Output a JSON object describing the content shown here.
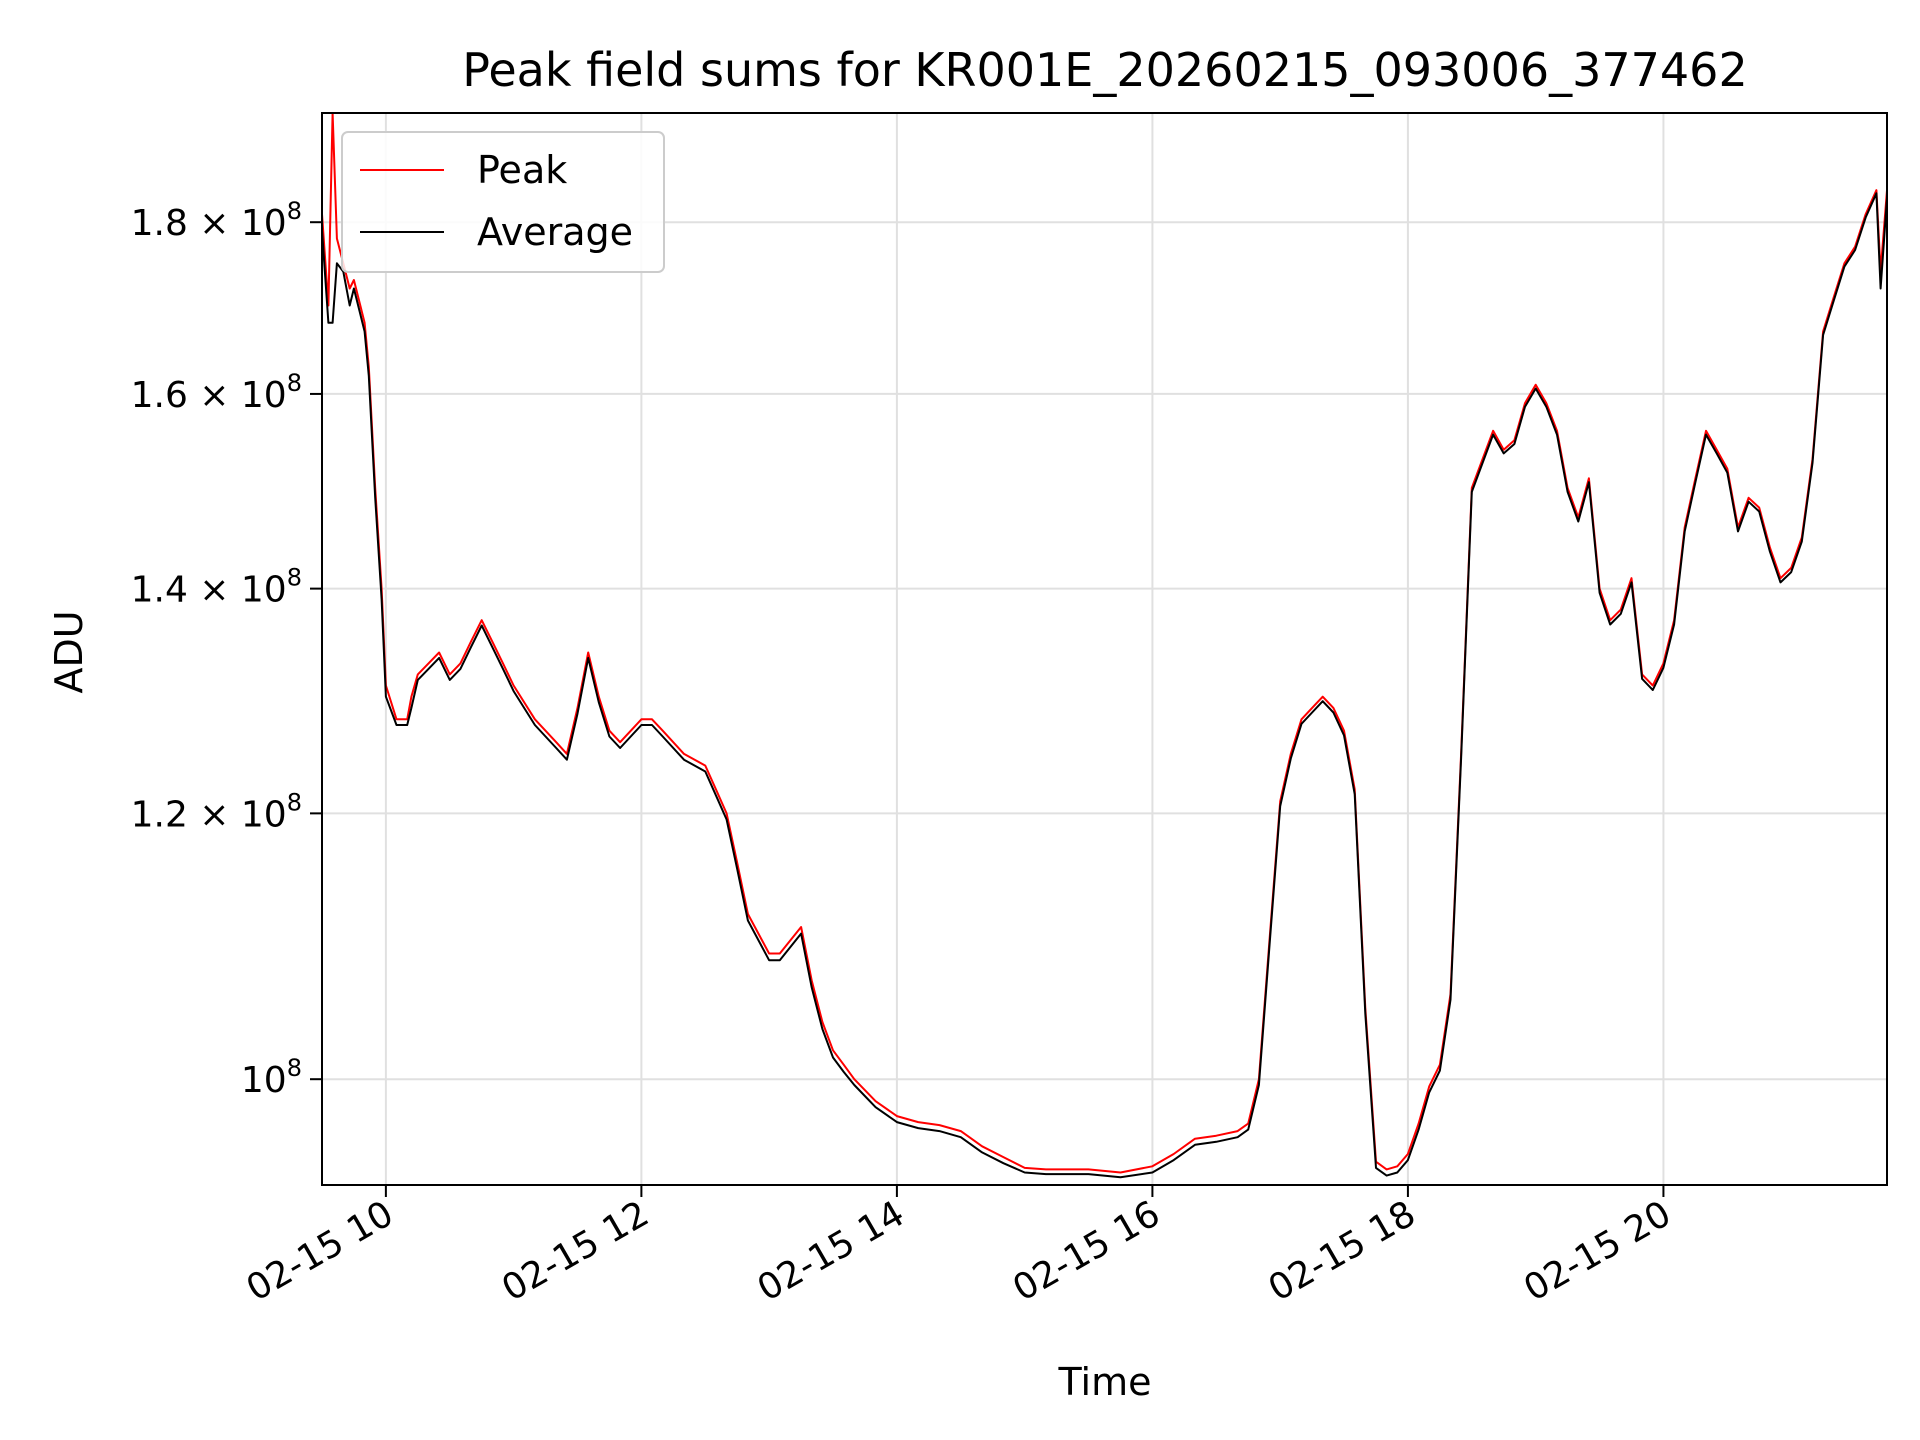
{
  "chart_data": {
    "type": "line",
    "title": "Peak field sums for KR001E_20260215_093006_377462",
    "xlabel": "Time",
    "ylabel": "ADU",
    "x_axis_type": "datetime",
    "y_scale": "log",
    "xlim": [
      "2026-02-15 09:30",
      "2026-02-15 21:45"
    ],
    "ylim": [
      93000000,
      194000000
    ],
    "grid": true,
    "legend_position": "top-left",
    "x_ticks": [
      {
        "value": "2026-02-15 10:00",
        "label": "02-15 10"
      },
      {
        "value": "2026-02-15 12:00",
        "label": "02-15 12"
      },
      {
        "value": "2026-02-15 14:00",
        "label": "02-15 14"
      },
      {
        "value": "2026-02-15 16:00",
        "label": "02-15 16"
      },
      {
        "value": "2026-02-15 18:00",
        "label": "02-15 18"
      },
      {
        "value": "2026-02-15 20:00",
        "label": "02-15 20"
      }
    ],
    "y_ticks": [
      {
        "value": 100000000,
        "mantissa": "",
        "label": "10",
        "exp": "8"
      },
      {
        "value": 120000000,
        "mantissa": "1.2",
        "label": "1.2 × 10",
        "exp": "8"
      },
      {
        "value": 140000000,
        "mantissa": "1.4",
        "label": "1.4 × 10",
        "exp": "8"
      },
      {
        "value": 160000000,
        "mantissa": "1.6",
        "label": "1.6 × 10",
        "exp": "8"
      },
      {
        "value": 180000000,
        "mantissa": "1.8",
        "label": "1.8 × 10",
        "exp": "8"
      }
    ],
    "x": [
      "2026-02-15 09:30",
      "2026-02-15 09:33",
      "2026-02-15 09:35",
      "2026-02-15 09:37",
      "2026-02-15 09:40",
      "2026-02-15 09:43",
      "2026-02-15 09:45",
      "2026-02-15 09:48",
      "2026-02-15 09:50",
      "2026-02-15 09:52",
      "2026-02-15 09:55",
      "2026-02-15 09:58",
      "2026-02-15 10:00",
      "2026-02-15 10:05",
      "2026-02-15 10:10",
      "2026-02-15 10:12",
      "2026-02-15 10:15",
      "2026-02-15 10:20",
      "2026-02-15 10:25",
      "2026-02-15 10:30",
      "2026-02-15 10:35",
      "2026-02-15 10:40",
      "2026-02-15 10:45",
      "2026-02-15 10:50",
      "2026-02-15 10:55",
      "2026-02-15 11:00",
      "2026-02-15 11:10",
      "2026-02-15 11:20",
      "2026-02-15 11:25",
      "2026-02-15 11:30",
      "2026-02-15 11:35",
      "2026-02-15 11:40",
      "2026-02-15 11:45",
      "2026-02-15 11:50",
      "2026-02-15 12:00",
      "2026-02-15 12:05",
      "2026-02-15 12:10",
      "2026-02-15 12:20",
      "2026-02-15 12:30",
      "2026-02-15 12:35",
      "2026-02-15 12:40",
      "2026-02-15 12:45",
      "2026-02-15 12:50",
      "2026-02-15 13:00",
      "2026-02-15 13:05",
      "2026-02-15 13:15",
      "2026-02-15 13:20",
      "2026-02-15 13:25",
      "2026-02-15 13:30",
      "2026-02-15 13:35",
      "2026-02-15 13:40",
      "2026-02-15 13:50",
      "2026-02-15 14:00",
      "2026-02-15 14:10",
      "2026-02-15 14:20",
      "2026-02-15 14:30",
      "2026-02-15 14:40",
      "2026-02-15 14:50",
      "2026-02-15 15:00",
      "2026-02-15 15:10",
      "2026-02-15 15:20",
      "2026-02-15 15:30",
      "2026-02-15 15:45",
      "2026-02-15 16:00",
      "2026-02-15 16:10",
      "2026-02-15 16:20",
      "2026-02-15 16:30",
      "2026-02-15 16:40",
      "2026-02-15 16:45",
      "2026-02-15 16:50",
      "2026-02-15 16:55",
      "2026-02-15 17:00",
      "2026-02-15 17:05",
      "2026-02-15 17:10",
      "2026-02-15 17:15",
      "2026-02-15 17:20",
      "2026-02-15 17:25",
      "2026-02-15 17:30",
      "2026-02-15 17:35",
      "2026-02-15 17:40",
      "2026-02-15 17:45",
      "2026-02-15 17:50",
      "2026-02-15 17:55",
      "2026-02-15 18:00",
      "2026-02-15 18:05",
      "2026-02-15 18:10",
      "2026-02-15 18:15",
      "2026-02-15 18:20",
      "2026-02-15 18:25",
      "2026-02-15 18:30",
      "2026-02-15 18:40",
      "2026-02-15 18:45",
      "2026-02-15 18:50",
      "2026-02-15 18:55",
      "2026-02-15 19:00",
      "2026-02-15 19:05",
      "2026-02-15 19:10",
      "2026-02-15 19:15",
      "2026-02-15 19:20",
      "2026-02-15 19:25",
      "2026-02-15 19:30",
      "2026-02-15 19:35",
      "2026-02-15 19:40",
      "2026-02-15 19:45",
      "2026-02-15 19:50",
      "2026-02-15 19:55",
      "2026-02-15 20:00",
      "2026-02-15 20:05",
      "2026-02-15 20:10",
      "2026-02-15 20:15",
      "2026-02-15 20:20",
      "2026-02-15 20:25",
      "2026-02-15 20:30",
      "2026-02-15 20:35",
      "2026-02-15 20:40",
      "2026-02-15 20:45",
      "2026-02-15 20:50",
      "2026-02-15 20:55",
      "2026-02-15 21:00",
      "2026-02-15 21:05",
      "2026-02-15 21:10",
      "2026-02-15 21:15",
      "2026-02-15 21:20",
      "2026-02-15 21:25",
      "2026-02-15 21:30",
      "2026-02-15 21:35",
      "2026-02-15 21:40",
      "2026-02-15 21:42",
      "2026-02-15 21:45"
    ],
    "series": [
      {
        "name": "Peak",
        "color": "#ff0000",
        "values": [
          181,
          170,
          194,
          178,
          175,
          172,
          173,
          170,
          168,
          163,
          150,
          140,
          131,
          128,
          128,
          130,
          132,
          133,
          134,
          132,
          133,
          135,
          137,
          135,
          133,
          131,
          128,
          126,
          125,
          129,
          134,
          130,
          127,
          126,
          128,
          128,
          127,
          125,
          124,
          122,
          120,
          116,
          112,
          109,
          109,
          111,
          107,
          104,
          102,
          101,
          100,
          98.5,
          97.5,
          97.1,
          96.9,
          96.5,
          95.5,
          94.8,
          94.1,
          94,
          94,
          94,
          93.8,
          94.2,
          95,
          96,
          96.2,
          96.5,
          97,
          100,
          110,
          121,
          125,
          128,
          129,
          130,
          129,
          127,
          122,
          105,
          94.5,
          94,
          94.2,
          95,
          97,
          99.5,
          101,
          106,
          125,
          150,
          156,
          154,
          155,
          159,
          161,
          159,
          156,
          150,
          147,
          151,
          140,
          137,
          138,
          141,
          132,
          131,
          133,
          137,
          146,
          151,
          156,
          154,
          152,
          146,
          149,
          148,
          144,
          141,
          142,
          145,
          153,
          167,
          171,
          175,
          177,
          181,
          184,
          174,
          184
        ]
      },
      {
        "name": "Average",
        "color": "#000000",
        "values": [
          179,
          168,
          168,
          175,
          174,
          170,
          172,
          169,
          167,
          162,
          149,
          139,
          130,
          127.5,
          127.5,
          129,
          131.5,
          132.5,
          133.5,
          131.5,
          132.5,
          134.5,
          136.5,
          134.5,
          132.5,
          130.5,
          127.5,
          125.5,
          124.5,
          128.5,
          133.5,
          129.5,
          126.5,
          125.5,
          127.5,
          127.5,
          126.5,
          124.5,
          123.5,
          121.5,
          119.5,
          115.5,
          111.5,
          108.5,
          108.5,
          110.5,
          106.5,
          103.5,
          101.5,
          100.5,
          99.6,
          98.1,
          97.1,
          96.7,
          96.5,
          96.1,
          95.1,
          94.4,
          93.8,
          93.7,
          93.7,
          93.7,
          93.5,
          93.8,
          94.6,
          95.6,
          95.8,
          96.1,
          96.6,
          99.6,
          109.6,
          120.6,
          124.6,
          127.6,
          128.6,
          129.6,
          128.6,
          126.6,
          121.6,
          104.6,
          94.1,
          93.6,
          93.8,
          94.6,
          96.6,
          99.1,
          100.6,
          105.6,
          124.6,
          149.6,
          155.6,
          153.6,
          154.6,
          158.6,
          160.6,
          158.6,
          155.6,
          149.6,
          146.6,
          150.6,
          139.6,
          136.6,
          137.6,
          140.6,
          131.6,
          130.6,
          132.6,
          136.6,
          145.6,
          150.6,
          155.6,
          153.6,
          151.6,
          145.6,
          148.6,
          147.6,
          143.6,
          140.6,
          141.6,
          144.6,
          152.6,
          166.6,
          170.6,
          174.6,
          176.6,
          180.6,
          183.6,
          172,
          183
        ]
      }
    ],
    "values_unit_multiplier": 1000000
  }
}
